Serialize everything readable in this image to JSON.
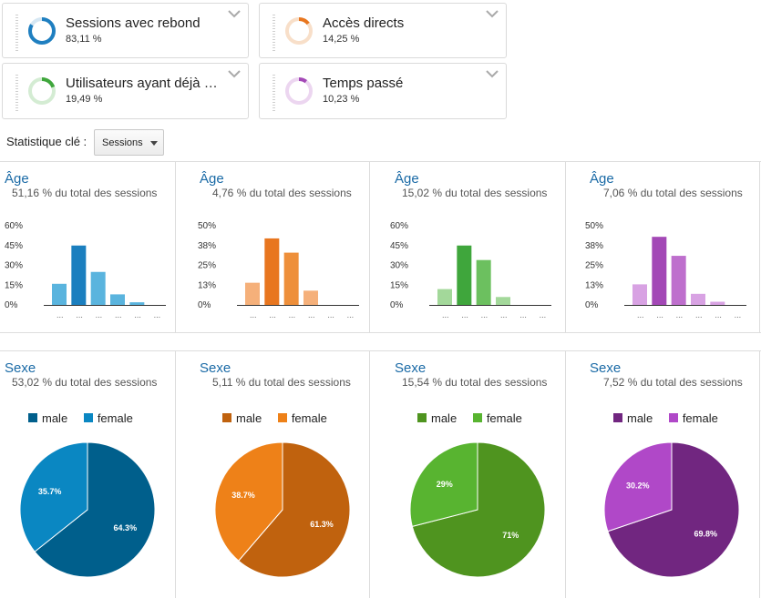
{
  "cards": [
    {
      "name": "Sessions avec rebond",
      "value": "83,11 %",
      "fraction": 0.8311,
      "color": "#1f7fc0",
      "track": "#d6e7f3"
    },
    {
      "name": "Accès directs",
      "value": "14,25 %",
      "fraction": 0.1425,
      "color": "#e8761f",
      "track": "#f8dfc9"
    },
    {
      "name": "Utilisateurs ayant déjà vi...",
      "value": "19,49 %",
      "fraction": 0.1949,
      "color": "#3fa63c",
      "track": "#d4ecd3"
    },
    {
      "name": "Temps passé",
      "value": "10,23 %",
      "fraction": 0.1023,
      "color": "#a348b6",
      "track": "#ecd6f0"
    }
  ],
  "statistic": {
    "label": "Statistique clé :",
    "selected": "Sessions"
  },
  "age_panels": [
    {
      "title": "Âge",
      "subtitle": "51,16 % du total des sessions",
      "ticks": [
        "60%",
        "45%",
        "30%",
        "15%",
        "0%"
      ],
      "ymax": 60,
      "values": [
        16,
        45,
        25,
        8,
        2,
        0
      ],
      "colors": [
        "#5ab4de",
        "#1b7fbf",
        "#5ab4de",
        "#5ab4de",
        "#5ab4de",
        "#5ab4de"
      ]
    },
    {
      "title": "Âge",
      "subtitle": "4,76 % du total des sessions",
      "ticks": [
        "50%",
        "38%",
        "25%",
        "13%",
        "0%"
      ],
      "ymax": 50,
      "values": [
        14,
        42,
        33,
        9,
        0,
        0
      ],
      "colors": [
        "#f5b07a",
        "#e8761f",
        "#ee8f3a",
        "#f5b07a",
        "#f5b07a",
        "#f5b07a"
      ]
    },
    {
      "title": "Âge",
      "subtitle": "15,02 % du total des sessions",
      "ticks": [
        "60%",
        "45%",
        "30%",
        "15%",
        "0%"
      ],
      "ymax": 60,
      "values": [
        12,
        45,
        34,
        6,
        0,
        0
      ],
      "colors": [
        "#a3d89a",
        "#3fa63c",
        "#6cc05f",
        "#a3d89a",
        "#a3d89a",
        "#a3d89a"
      ]
    },
    {
      "title": "Âge",
      "subtitle": "7,06 % du total des sessions",
      "ticks": [
        "50%",
        "38%",
        "25%",
        "13%",
        "0%"
      ],
      "ymax": 50,
      "values": [
        13,
        43,
        31,
        7,
        2,
        0
      ],
      "colors": [
        "#d8a2e3",
        "#a348b6",
        "#be6fcd",
        "#d8a2e3",
        "#d8a2e3",
        "#d8a2e3"
      ]
    }
  ],
  "age_xlabels": [
    "...",
    "...",
    "...",
    "...",
    "...",
    "..."
  ],
  "gender_panels": [
    {
      "title": "Sexe",
      "subtitle": "53,02 % du total des sessions",
      "legend": [
        "male",
        "female"
      ],
      "colors": [
        "#005f8c",
        "#0a87c2"
      ],
      "male_label": "64.3%",
      "female_label": "35.7%",
      "male_pct": 64.3
    },
    {
      "title": "Sexe",
      "subtitle": "5,11 % du total des sessions",
      "legend": [
        "male",
        "female"
      ],
      "colors": [
        "#c0620e",
        "#ee8118"
      ],
      "male_label": "61.3%",
      "female_label": "38.7%",
      "male_pct": 61.3
    },
    {
      "title": "Sexe",
      "subtitle": "15,54 % du total des sessions",
      "legend": [
        "male",
        "female"
      ],
      "colors": [
        "#4f941f",
        "#58b430"
      ],
      "male_label": "71%",
      "female_label": "29%",
      "male_pct": 71
    },
    {
      "title": "Sexe",
      "subtitle": "7,52 % du total des sessions",
      "legend": [
        "male",
        "female"
      ],
      "colors": [
        "#712680",
        "#b048c8"
      ],
      "male_label": "69.8%",
      "female_label": "30.2%",
      "male_pct": 69.8
    }
  ]
}
